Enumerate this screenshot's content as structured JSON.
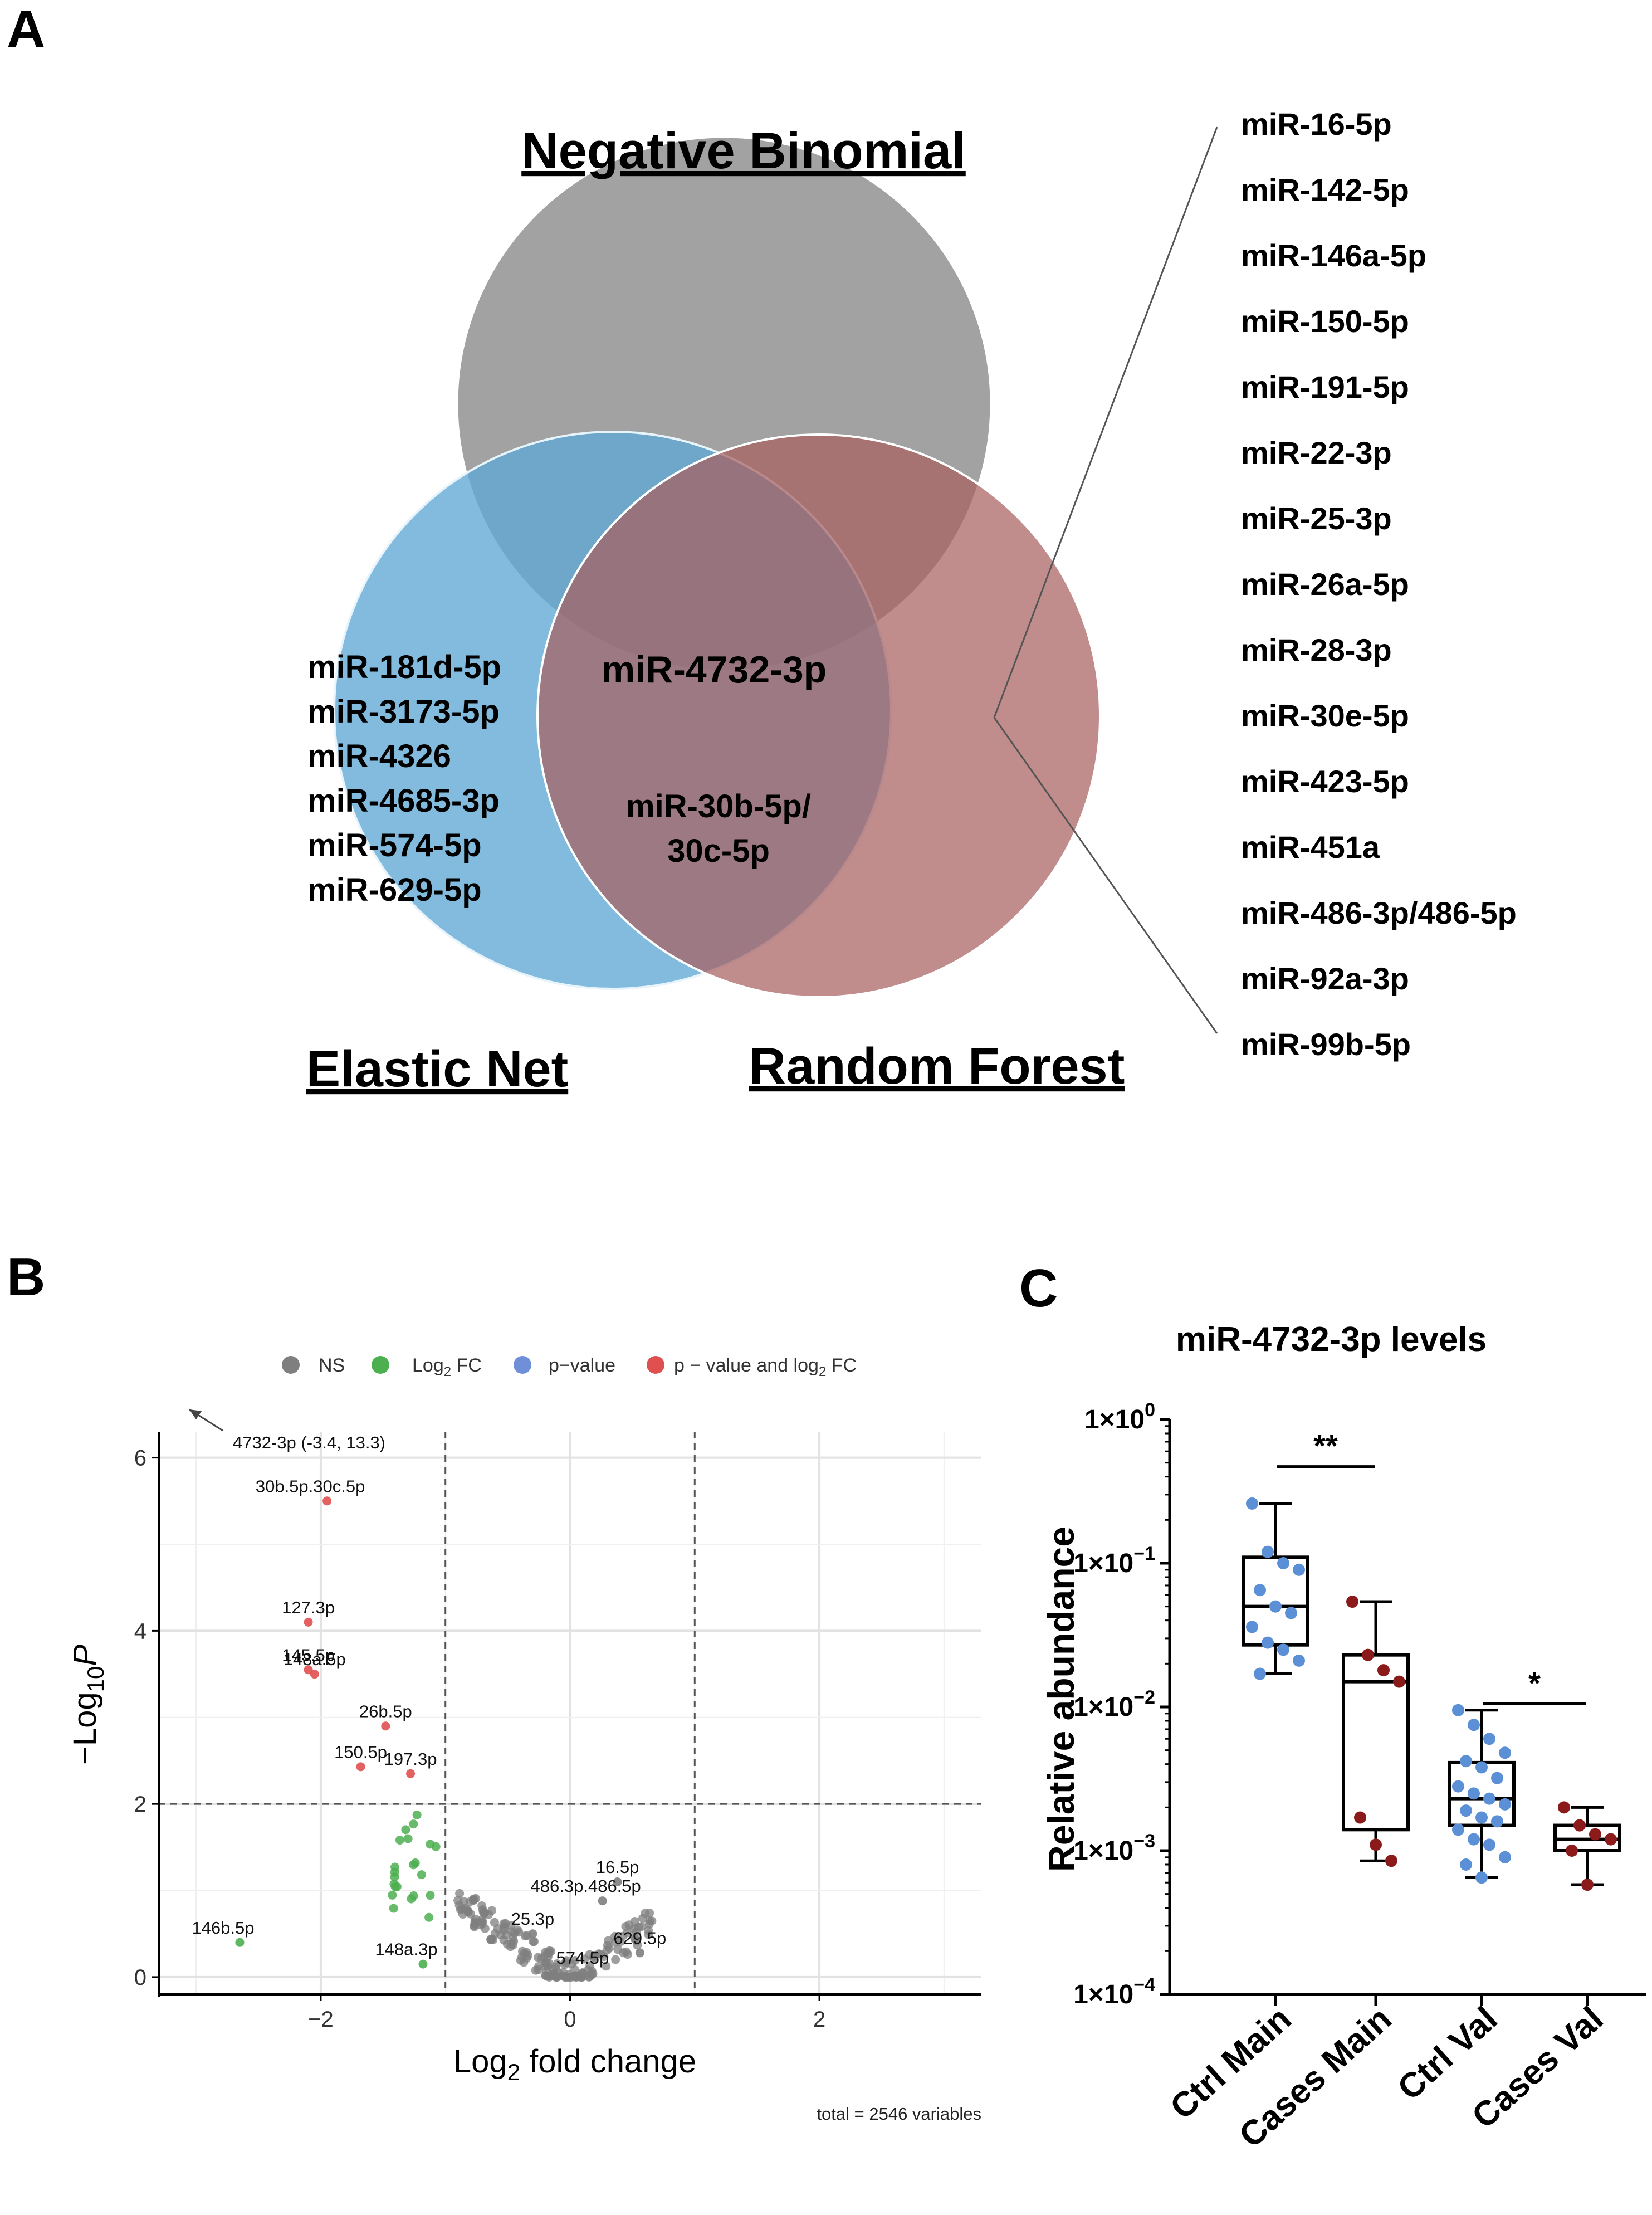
{
  "panels": {
    "a": "A",
    "b": "B",
    "c": "C"
  },
  "venn": {
    "titles": {
      "top": "Negative Binomial",
      "left": "Elastic Net",
      "right": "Random Forest"
    },
    "colors": {
      "top": "#9a9a9a",
      "left": "#5fa8d3",
      "right": "#a85f5f"
    },
    "elastic_only": [
      "miR-181d-5p",
      "miR-3173-5p",
      "miR-4326",
      "miR-4685-3p",
      "miR-574-5p",
      "miR-629-5p"
    ],
    "center": "miR-4732-3p",
    "elastic_random": [
      "miR-30b-5p/",
      "30c-5p"
    ],
    "random_only": [
      "miR-16-5p",
      "miR-142-5p",
      "miR-146a-5p",
      "miR-150-5p",
      "miR-191-5p",
      "miR-22-3p",
      "miR-25-3p",
      "miR-26a-5p",
      "miR-28-3p",
      "miR-30e-5p",
      "miR-423-5p",
      "miR-451a",
      "miR-486-3p/486-5p",
      "miR-92a-3p",
      "miR-99b-5p"
    ]
  },
  "chart_data": [
    {
      "type": "scatter",
      "title": "",
      "xlabel": "Log2 fold change",
      "ylabel": "-Log10 P",
      "xlim": [
        -3.3,
        3.3
      ],
      "ylim": [
        -0.2,
        6.3
      ],
      "xticks": [
        "-2",
        "0",
        "2"
      ],
      "yticks": [
        "0",
        "2",
        "4",
        "6"
      ],
      "thresholds": {
        "log2fc": [
          -1,
          1
        ],
        "p": 2
      },
      "legend": [
        {
          "label": "NS",
          "color": "#7f7f7f"
        },
        {
          "label": "Log2 FC",
          "color": "#4caf50"
        },
        {
          "label": "p-value",
          "color": "#6f8fd8"
        },
        {
          "label": "p - value and log2 FC",
          "color": "#e05050"
        }
      ],
      "legend_parts": {
        "ns": "NS",
        "log": "Log",
        "two": "2",
        "fc": " FC",
        "pval": "p−value",
        "pvfc": "p − value and log",
        "fc2": " FC"
      },
      "axis_parts": {
        "x_main": "Log",
        "x_sub": "2",
        "x_rest": " fold change",
        "y_minus": "−",
        "y_log": "Log",
        "y_sub": "10",
        "y_p": "P"
      },
      "footer": "total = 2546 variables",
      "offscale_label": "4732-3p (-3.4, 13.3)",
      "labeled_points": [
        {
          "label": "30b.5p.30c.5p",
          "x": -1.95,
          "y": 5.5,
          "group": "red"
        },
        {
          "label": "127.3p",
          "x": -2.1,
          "y": 4.1,
          "group": "red"
        },
        {
          "label": "145.5p",
          "x": -2.1,
          "y": 3.55,
          "group": "red"
        },
        {
          "label": "148a.5p",
          "x": -2.05,
          "y": 3.5,
          "group": "red"
        },
        {
          "label": "26b.5p",
          "x": -1.48,
          "y": 2.9,
          "group": "red"
        },
        {
          "label": "150.5p",
          "x": -1.68,
          "y": 2.43,
          "group": "red"
        },
        {
          "label": "197.3p",
          "x": -1.28,
          "y": 2.35,
          "group": "red"
        },
        {
          "label": "16.5p",
          "x": 0.38,
          "y": 1.1,
          "group": "ns"
        },
        {
          "label": "486.3p.486.5p",
          "x": 0.26,
          "y": 0.88,
          "group": "ns"
        },
        {
          "label": "25.3p",
          "x": -0.3,
          "y": 0.5,
          "group": "ns"
        },
        {
          "label": "629.5p",
          "x": 0.56,
          "y": 0.28,
          "group": "ns"
        },
        {
          "label": "574.5p",
          "x": 0.1,
          "y": 0.05,
          "group": "ns"
        },
        {
          "label": "146b.5p",
          "x": -2.65,
          "y": 0.4,
          "group": "green"
        },
        {
          "label": "148a.3p",
          "x": -1.18,
          "y": 0.15,
          "group": "green"
        }
      ]
    },
    {
      "type": "box",
      "title": "miR-4732-3p levels",
      "ylabel": "Relative abundance",
      "yscale": "log10",
      "ylim_exp": [
        -4,
        0
      ],
      "yticks": [
        {
          "base": "1×10",
          "exp": "0"
        },
        {
          "base": "1×10",
          "exp": "-1"
        },
        {
          "base": "1×10",
          "exp": "-2"
        },
        {
          "base": "1×10",
          "exp": "-3"
        },
        {
          "base": "1×10",
          "exp": "-4"
        }
      ],
      "categories": [
        "Ctrl Main",
        "Cases Main",
        "Ctrl Val",
        "Cases Val"
      ],
      "boxes": [
        {
          "min": 0.017,
          "q1": 0.027,
          "median": 0.05,
          "q3": 0.11,
          "max": 0.26,
          "color": "#5b8fd6",
          "points": [
            0.26,
            0.12,
            0.1,
            0.09,
            0.065,
            0.05,
            0.045,
            0.036,
            0.028,
            0.025,
            0.021,
            0.017
          ]
        },
        {
          "min": 0.00085,
          "q1": 0.0014,
          "median": 0.015,
          "q3": 0.023,
          "max": 0.054,
          "color": "#8b1a1a",
          "points": [
            0.054,
            0.023,
            0.018,
            0.015,
            0.0017,
            0.0011,
            0.00085
          ]
        },
        {
          "min": 0.00065,
          "q1": 0.0015,
          "median": 0.0023,
          "q3": 0.0041,
          "max": 0.0095,
          "color": "#5b8fd6",
          "points": [
            0.0095,
            0.0075,
            0.006,
            0.0048,
            0.0042,
            0.0038,
            0.0032,
            0.0028,
            0.0025,
            0.0023,
            0.0021,
            0.0019,
            0.0017,
            0.0016,
            0.0014,
            0.0012,
            0.0011,
            0.0009,
            0.0008,
            0.00065
          ]
        },
        {
          "min": 0.00058,
          "q1": 0.001,
          "median": 0.0012,
          "q3": 0.0015,
          "max": 0.002,
          "color": "#8b1a1a",
          "points": [
            0.002,
            0.0015,
            0.0013,
            0.0012,
            0.001,
            0.00058
          ]
        }
      ],
      "significance": [
        {
          "from": 0,
          "to": 1,
          "label": "**",
          "y": 0.47
        },
        {
          "from": 2,
          "to": 3,
          "label": "*",
          "y": 0.0105
        }
      ]
    }
  ]
}
